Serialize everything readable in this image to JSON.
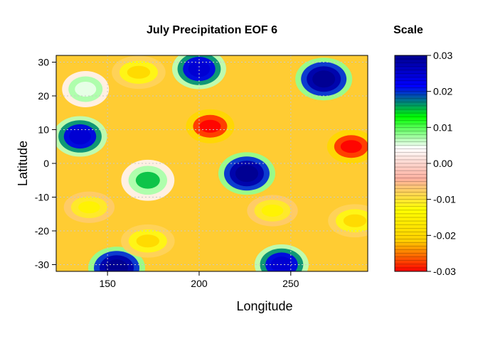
{
  "chart_data": {
    "type": "heatmap",
    "title": "July Precipitation EOF 6",
    "xlabel": "Longitude",
    "ylabel": "Latitude",
    "xlim": [
      122,
      292
    ],
    "ylim": [
      -32,
      32
    ],
    "x_ticks": [
      150,
      200,
      250
    ],
    "y_ticks": [
      30,
      20,
      10,
      0,
      -10,
      -20,
      -30
    ],
    "grid": true,
    "colorbar": {
      "title": "Scale",
      "min": -0.03,
      "max": 0.03,
      "ticks": [
        "0.03",
        "0.02",
        "0.01",
        "0.00",
        "-0.01",
        "-0.02",
        "-0.03"
      ],
      "tick_values": [
        0.03,
        0.02,
        0.01,
        0.0,
        -0.01,
        -0.02,
        -0.03
      ],
      "colors": [
        "#ff0000",
        "#ffd000",
        "#ffff00",
        "#ffb0a0",
        "#ffffff",
        "#00ff00",
        "#0000ff",
        "#000090"
      ]
    },
    "features": [
      {
        "type": "min",
        "lon": 206,
        "lat": 11,
        "value": -0.03
      },
      {
        "type": "min",
        "lon": 283,
        "lat": 5,
        "value": -0.03
      },
      {
        "type": "max",
        "lon": 226,
        "lat": -3,
        "value": 0.03
      },
      {
        "type": "max",
        "lon": 268,
        "lat": 25,
        "value": 0.03
      },
      {
        "type": "max",
        "lon": 135,
        "lat": 8,
        "value": 0.025
      },
      {
        "type": "max",
        "lon": 155,
        "lat": -31,
        "value": 0.03
      },
      {
        "type": "max",
        "lon": 245,
        "lat": -30,
        "value": 0.025
      },
      {
        "type": "max",
        "lon": 200,
        "lat": 28,
        "value": 0.025
      },
      {
        "type": "pos",
        "lon": 172,
        "lat": -5,
        "value": 0.015
      },
      {
        "type": "pos",
        "lon": 138,
        "lat": 22,
        "value": 0.005
      },
      {
        "type": "neg",
        "lon": 167,
        "lat": 27,
        "value": -0.02
      },
      {
        "type": "neg",
        "lon": 172,
        "lat": -23,
        "value": -0.02
      },
      {
        "type": "neg",
        "lon": 285,
        "lat": -17,
        "value": -0.02
      },
      {
        "type": "neg",
        "lon": 140,
        "lat": -13,
        "value": -0.015
      },
      {
        "type": "neg",
        "lon": 240,
        "lat": -14,
        "value": -0.015
      }
    ]
  }
}
